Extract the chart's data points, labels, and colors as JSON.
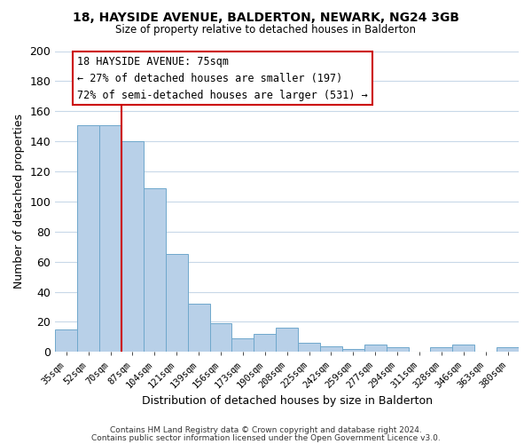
{
  "title": "18, HAYSIDE AVENUE, BALDERTON, NEWARK, NG24 3GB",
  "subtitle": "Size of property relative to detached houses in Balderton",
  "xlabel": "Distribution of detached houses by size in Balderton",
  "ylabel": "Number of detached properties",
  "bar_color": "#b8d0e8",
  "bar_edge_color": "#6fa8cc",
  "categories": [
    "35sqm",
    "52sqm",
    "70sqm",
    "87sqm",
    "104sqm",
    "121sqm",
    "139sqm",
    "156sqm",
    "173sqm",
    "190sqm",
    "208sqm",
    "225sqm",
    "242sqm",
    "259sqm",
    "277sqm",
    "294sqm",
    "311sqm",
    "328sqm",
    "346sqm",
    "363sqm",
    "380sqm"
  ],
  "values": [
    15,
    151,
    151,
    140,
    109,
    65,
    32,
    19,
    9,
    12,
    16,
    6,
    4,
    2,
    5,
    3,
    0,
    3,
    5,
    0,
    3
  ],
  "ylim": [
    0,
    200
  ],
  "yticks": [
    0,
    20,
    40,
    60,
    80,
    100,
    120,
    140,
    160,
    180,
    200
  ],
  "vline_color": "#cc0000",
  "annotation_title": "18 HAYSIDE AVENUE: 75sqm",
  "annotation_line1": "← 27% of detached houses are smaller (197)",
  "annotation_line2": "72% of semi-detached houses are larger (531) →",
  "annotation_box_color": "#ffffff",
  "annotation_box_edge": "#cc0000",
  "footer1": "Contains HM Land Registry data © Crown copyright and database right 2024.",
  "footer2": "Contains public sector information licensed under the Open Government Licence v3.0.",
  "background_color": "#ffffff",
  "grid_color": "#c8d8e8"
}
